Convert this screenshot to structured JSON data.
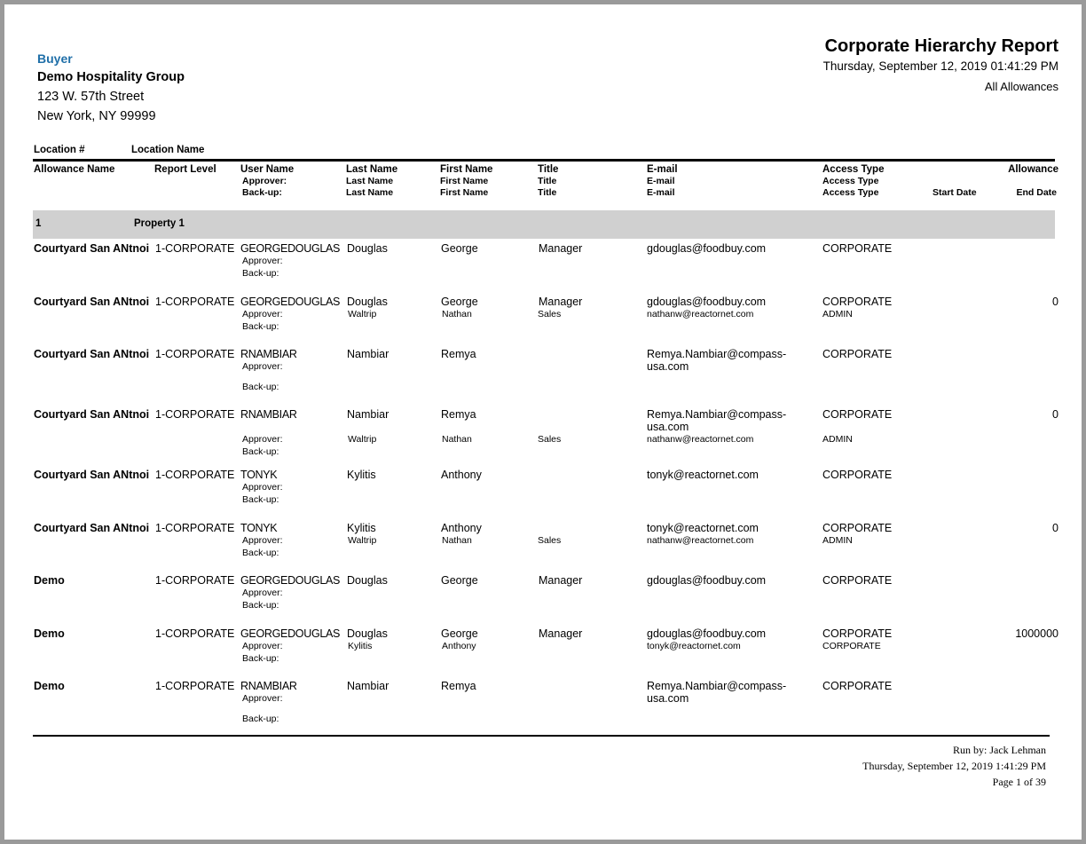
{
  "company": {
    "label": "Buyer",
    "name": "Demo Hospitality Group",
    "address1": "123 W. 57th Street",
    "address2": "New York, NY 99999"
  },
  "report": {
    "title": "Corporate Hierarchy Report",
    "datetime": "Thursday, September 12, 2019 01:41:29 PM",
    "filter": "All Allowances"
  },
  "header": {
    "location_num": "Location #",
    "location_name": "Location Name",
    "allowance_name": "Allowance Name",
    "report_level": "Report Level",
    "user_name": "User Name",
    "approver": "Approver:",
    "backup": "Back-up:",
    "last_name": "Last Name",
    "first_name": "First Name",
    "title": "Title",
    "email": "E-mail",
    "access_type": "Access Type",
    "allowance": "Allowance",
    "start_date": "Start Date",
    "end_date": "End Date"
  },
  "group": {
    "number": "1",
    "name": "Property 1"
  },
  "rows": [
    {
      "allowance": "Courtyard San ANtnoi",
      "level": "1-CORPORATE",
      "user": "GEORGEDOUGLAS",
      "last": "Douglas",
      "first": "George",
      "title": "Manager",
      "email": "gdouglas@foodbuy.com",
      "access": "CORPORATE",
      "amount": "",
      "ap_last": "",
      "ap_first": "",
      "ap_title": "",
      "ap_email": "",
      "ap_access": ""
    },
    {
      "allowance": "Courtyard San ANtnoi",
      "level": "1-CORPORATE",
      "user": "GEORGEDOUGLAS",
      "last": "Douglas",
      "first": "George",
      "title": "Manager",
      "email": "gdouglas@foodbuy.com",
      "access": "CORPORATE",
      "amount": "0",
      "ap_last": "Waltrip",
      "ap_first": "Nathan",
      "ap_title": "Sales",
      "ap_email": "nathanw@reactornet.com",
      "ap_access": "ADMIN"
    },
    {
      "allowance": "Courtyard San ANtnoi",
      "level": "1-CORPORATE",
      "user": "RNAMBIAR",
      "last": "Nambiar",
      "first": "Remya",
      "title": "",
      "email": "Remya.Nambiar@compass-usa.com",
      "access": "CORPORATE",
      "amount": "",
      "ap_last": "",
      "ap_first": "",
      "ap_title": "",
      "ap_email": "",
      "ap_access": ""
    },
    {
      "allowance": "Courtyard San ANtnoi",
      "level": "1-CORPORATE",
      "user": "RNAMBIAR",
      "last": "Nambiar",
      "first": "Remya",
      "title": "",
      "email": "Remya.Nambiar@compass-usa.com",
      "access": "CORPORATE",
      "amount": "0",
      "ap_last": "Waltrip",
      "ap_first": "Nathan",
      "ap_title": "Sales",
      "ap_email": "nathanw@reactornet.com",
      "ap_access": "ADMIN"
    },
    {
      "allowance": "Courtyard San ANtnoi",
      "level": "1-CORPORATE",
      "user": "TONYK",
      "last": "Kylitis",
      "first": "Anthony",
      "title": "",
      "email": "tonyk@reactornet.com",
      "access": "CORPORATE",
      "amount": "",
      "ap_last": "",
      "ap_first": "",
      "ap_title": "",
      "ap_email": "",
      "ap_access": ""
    },
    {
      "allowance": "Courtyard San ANtnoi",
      "level": "1-CORPORATE",
      "user": "TONYK",
      "last": "Kylitis",
      "first": "Anthony",
      "title": "",
      "email": "tonyk@reactornet.com",
      "access": "CORPORATE",
      "amount": "0",
      "ap_last": "Waltrip",
      "ap_first": "Nathan",
      "ap_title": "Sales",
      "ap_email": "nathanw@reactornet.com",
      "ap_access": "ADMIN"
    },
    {
      "allowance": "Demo",
      "level": "1-CORPORATE",
      "user": "GEORGEDOUGLAS",
      "last": "Douglas",
      "first": "George",
      "title": "Manager",
      "email": "gdouglas@foodbuy.com",
      "access": "CORPORATE",
      "amount": "",
      "ap_last": "",
      "ap_first": "",
      "ap_title": "",
      "ap_email": "",
      "ap_access": ""
    },
    {
      "allowance": "Demo",
      "level": "1-CORPORATE",
      "user": "GEORGEDOUGLAS",
      "last": "Douglas",
      "first": "George",
      "title": "Manager",
      "email": "gdouglas@foodbuy.com",
      "access": "CORPORATE",
      "amount": "1000000",
      "ap_last": "Kylitis",
      "ap_first": "Anthony",
      "ap_title": "",
      "ap_email": "tonyk@reactornet.com",
      "ap_access": "CORPORATE"
    },
    {
      "allowance": "Demo",
      "level": "1-CORPORATE",
      "user": "RNAMBIAR",
      "last": "Nambiar",
      "first": "Remya",
      "title": "",
      "email": "Remya.Nambiar@compass-usa.com",
      "access": "CORPORATE",
      "amount": "",
      "ap_last": "",
      "ap_first": "",
      "ap_title": "",
      "ap_email": "",
      "ap_access": ""
    }
  ],
  "footer": {
    "run_by": "Run by: Jack Lehman",
    "datetime": "Thursday, September 12,  2019   1:41:29 PM",
    "page": "Page 1 of 39"
  }
}
